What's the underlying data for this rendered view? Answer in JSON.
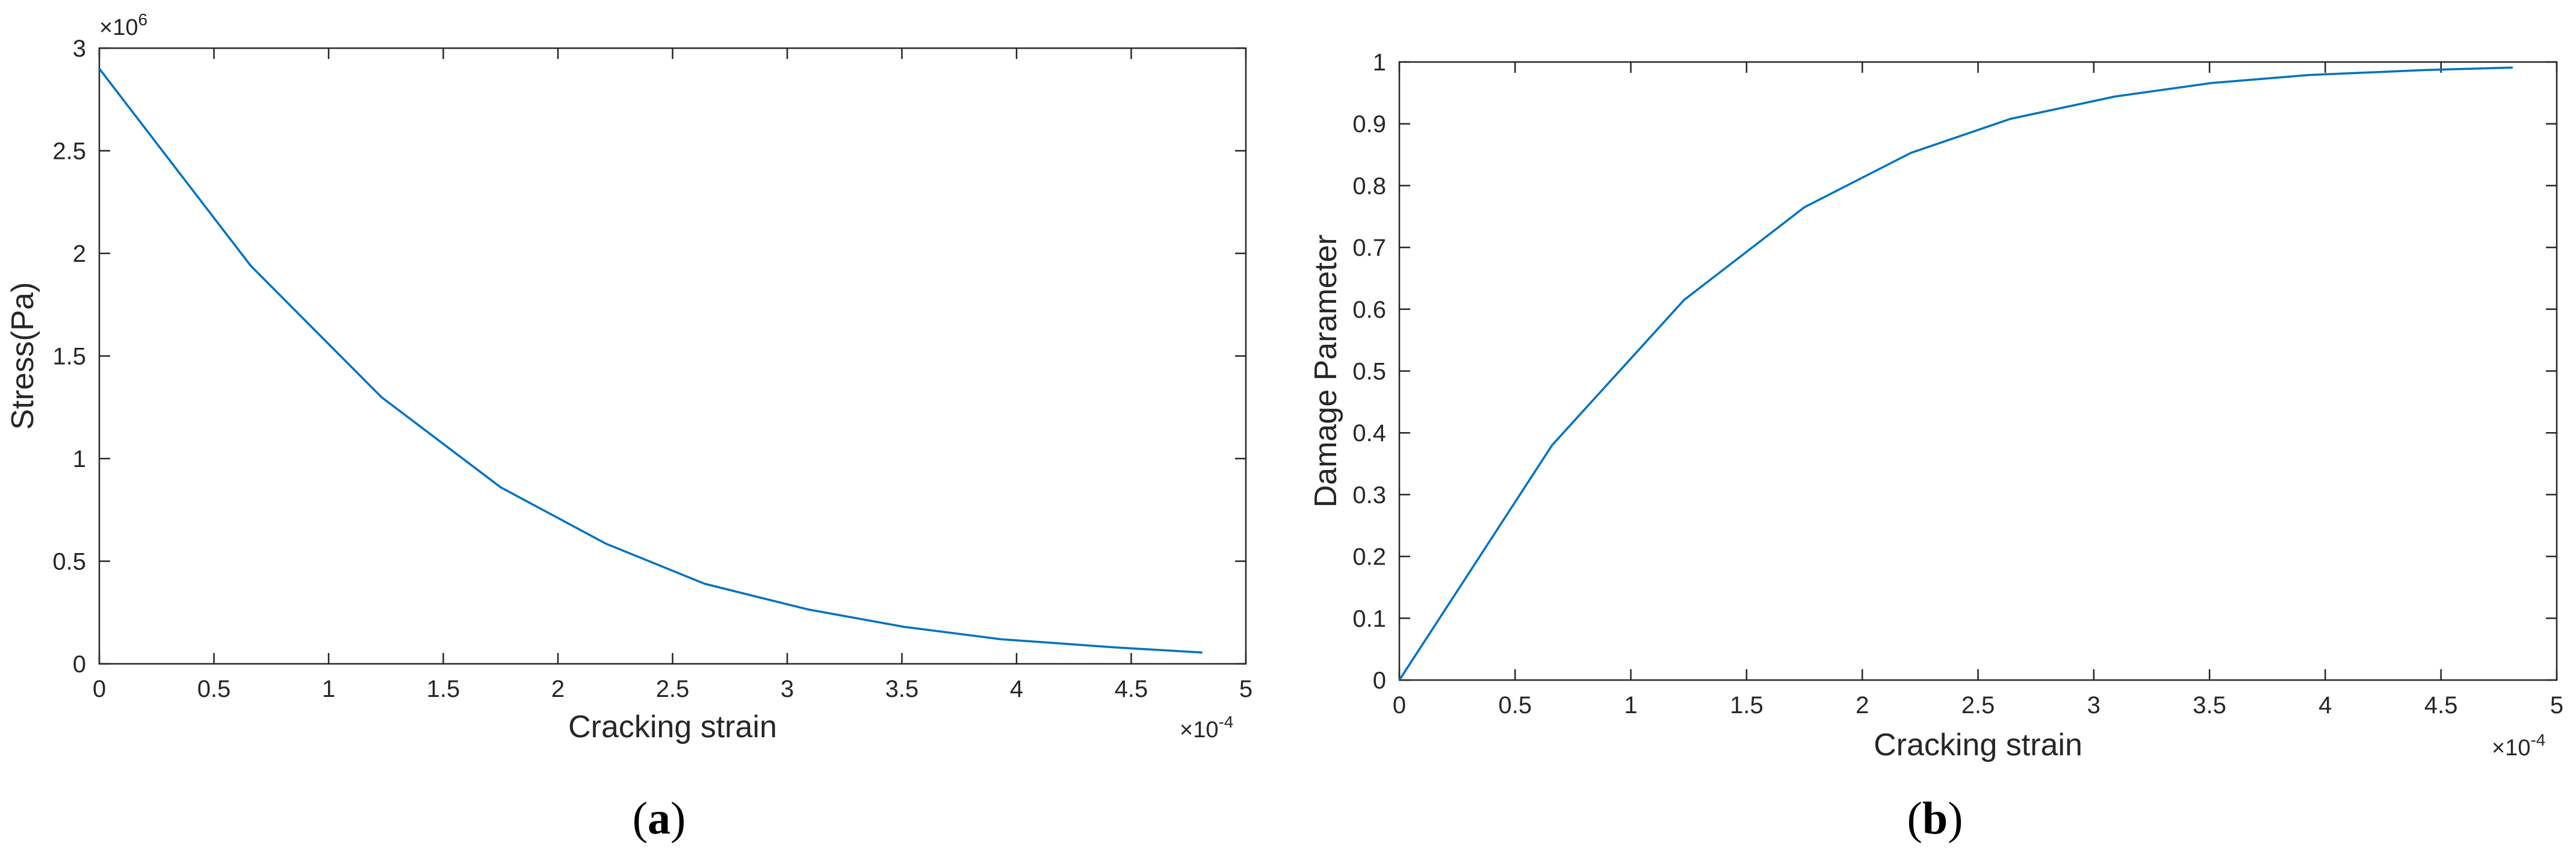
{
  "chart_data": [
    {
      "type": "line",
      "panel_label": {
        "open": "(",
        "letter": "a",
        "close": ")"
      },
      "xlabel": "Cracking strain",
      "ylabel": "Stress(Pa)",
      "x_multiplier": {
        "base": "×10",
        "exp": "-4"
      },
      "y_multiplier": {
        "base": "×10",
        "exp": "6"
      },
      "xlim": [
        0,
        5
      ],
      "ylim": [
        0,
        3
      ],
      "xticks": [
        "0",
        "0.5",
        "1",
        "1.5",
        "2",
        "2.5",
        "3",
        "3.5",
        "4",
        "4.5",
        "5"
      ],
      "yticks": [
        "0",
        "0.5",
        "1",
        "1.5",
        "2",
        "2.5",
        "3"
      ],
      "grid": false,
      "series": [
        {
          "color": "#0072BD",
          "x": [
            0,
            0.66,
            1.23,
            1.75,
            2.21,
            2.64,
            3.09,
            3.51,
            3.93,
            4.43,
            4.81
          ],
          "y": [
            2.9,
            1.94,
            1.3,
            0.86,
            0.585,
            0.39,
            0.265,
            0.18,
            0.12,
            0.08,
            0.055
          ]
        }
      ]
    },
    {
      "type": "line",
      "panel_label": {
        "open": "(",
        "letter": "b",
        "close": ")"
      },
      "xlabel": "Cracking strain",
      "ylabel": "Damage Parameter",
      "x_multiplier": {
        "base": "×10",
        "exp": "-4"
      },
      "xlim": [
        0,
        5
      ],
      "ylim": [
        0,
        1
      ],
      "xticks": [
        "0",
        "0.5",
        "1",
        "1.5",
        "2",
        "2.5",
        "3",
        "3.5",
        "4",
        "4.5",
        "5"
      ],
      "yticks": [
        "0",
        "0.1",
        "0.2",
        "0.3",
        "0.4",
        "0.5",
        "0.6",
        "0.7",
        "0.8",
        "0.9",
        "1"
      ],
      "grid": false,
      "series": [
        {
          "color": "#0072BD",
          "x": [
            0,
            0.66,
            1.23,
            1.75,
            2.21,
            2.64,
            3.09,
            3.51,
            3.93,
            4.43,
            4.81
          ],
          "y": [
            0,
            0.38,
            0.615,
            0.765,
            0.853,
            0.908,
            0.944,
            0.966,
            0.979,
            0.987,
            0.991
          ]
        }
      ]
    }
  ]
}
